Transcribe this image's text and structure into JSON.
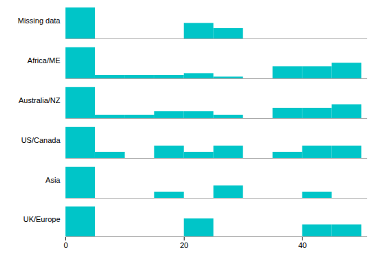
{
  "chart_data": [
    {
      "type": "histogram",
      "ylabel": "Missing data",
      "bins": [
        0,
        5,
        10,
        15,
        20,
        25,
        30,
        35,
        40,
        45,
        50
      ],
      "values": [
        12,
        0,
        0,
        0,
        6,
        4,
        0,
        0,
        0,
        0
      ],
      "color": "#00C5C8",
      "xlim": [
        0,
        51
      ],
      "ylim": [
        0,
        13.8
      ],
      "tick_labels": false
    },
    {
      "type": "histogram",
      "ylabel": "Africa/ME",
      "bins": [
        0,
        5,
        10,
        15,
        20,
        25,
        30,
        35,
        40,
        45,
        50
      ],
      "values": [
        18,
        2,
        2,
        2,
        3,
        1,
        0,
        7,
        7,
        9
      ],
      "color": "#00C5C8",
      "xlim": [
        0,
        51
      ],
      "ylim": [
        0,
        20.7
      ],
      "tick_labels": false
    },
    {
      "type": "histogram",
      "ylabel": "Australia/NZ",
      "bins": [
        0,
        5,
        10,
        15,
        20,
        25,
        30,
        35,
        40,
        45,
        50
      ],
      "values": [
        9,
        1,
        1,
        2,
        2,
        1,
        0,
        3,
        3,
        4
      ],
      "color": "#00C5C8",
      "xlim": [
        0,
        51
      ],
      "ylim": [
        0,
        10.35
      ],
      "tick_labels": false
    },
    {
      "type": "histogram",
      "ylabel": "US/Canada",
      "bins": [
        0,
        5,
        10,
        15,
        20,
        25,
        30,
        35,
        40,
        45,
        50
      ],
      "values": [
        5,
        1,
        0,
        2,
        1,
        2,
        0,
        1,
        2,
        2
      ],
      "color": "#00C5C8",
      "xlim": [
        0,
        51
      ],
      "ylim": [
        0,
        5.75
      ],
      "tick_labels": false
    },
    {
      "type": "histogram",
      "ylabel": "Asia",
      "bins": [
        0,
        5,
        10,
        15,
        20,
        25,
        30,
        35,
        40,
        45,
        50
      ],
      "values": [
        5,
        0,
        0,
        1,
        0,
        2,
        0,
        0,
        1,
        0
      ],
      "color": "#00C5C8",
      "xlim": [
        0,
        51
      ],
      "ylim": [
        0,
        5.75
      ],
      "tick_labels": false
    },
    {
      "type": "histogram",
      "ylabel": "UK/Europe",
      "bins": [
        0,
        5,
        10,
        15,
        20,
        25,
        30,
        35,
        40,
        45,
        50
      ],
      "values": [
        5,
        0,
        0,
        0,
        3,
        0,
        0,
        0,
        2,
        2
      ],
      "color": "#00C5C8",
      "xlim": [
        0,
        51
      ],
      "ylim": [
        0,
        5.75
      ],
      "xticks": [
        0,
        20,
        40
      ],
      "tick_labels": "x"
    }
  ]
}
